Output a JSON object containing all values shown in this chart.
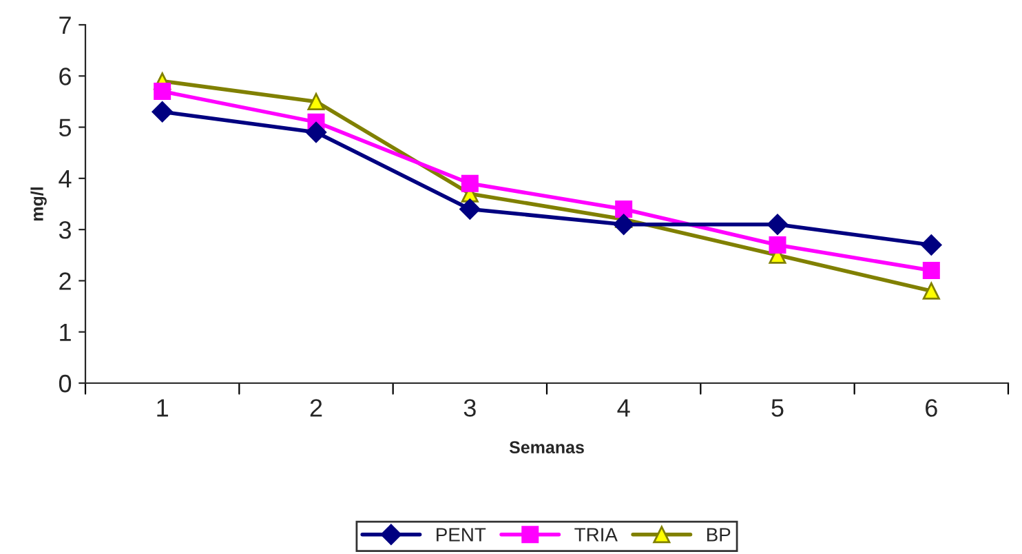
{
  "chart_data": {
    "type": "line",
    "xlabel": "Semanas",
    "ylabel": "mg/l",
    "categories": [
      "1",
      "2",
      "3",
      "4",
      "5",
      "6"
    ],
    "series": [
      {
        "name": "PENT",
        "color": "#000080",
        "marker": "diamond",
        "values": [
          5.3,
          4.9,
          3.4,
          3.1,
          3.1,
          2.7
        ]
      },
      {
        "name": "TRIA",
        "color": "#ff00ff",
        "marker": "square",
        "values": [
          5.7,
          5.1,
          3.9,
          3.4,
          2.7,
          2.2
        ]
      },
      {
        "name": "BP",
        "color": "#808000",
        "marker": "triangle",
        "values": [
          5.9,
          5.5,
          3.7,
          3.2,
          2.5,
          1.8
        ]
      }
    ],
    "ylim": [
      0,
      7
    ],
    "yticks": [
      0,
      1,
      2,
      3,
      4,
      5,
      6,
      7
    ],
    "grid": false,
    "legend": "bottom"
  }
}
